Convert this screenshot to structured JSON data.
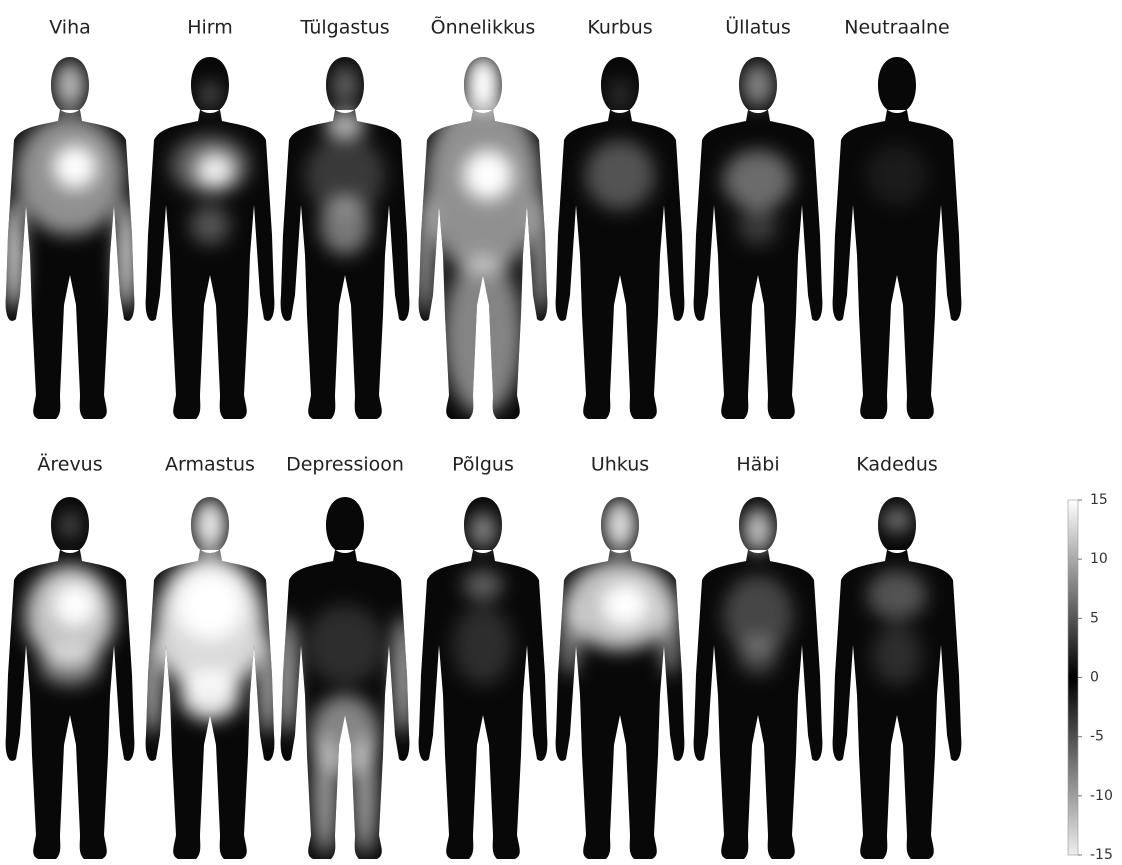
{
  "panels": [
    {
      "label": "Viha"
    },
    {
      "label": "Hirm"
    },
    {
      "label": "Tülgastus"
    },
    {
      "label": "Õnnelikkus"
    },
    {
      "label": "Kurbus"
    },
    {
      "label": "Üllatus"
    },
    {
      "label": "Neutraalne"
    },
    {
      "label": "Ärevus"
    },
    {
      "label": "Armastus"
    },
    {
      "label": "Depressioon"
    },
    {
      "label": "Põlgus"
    },
    {
      "label": "Uhkus"
    },
    {
      "label": "Häbi"
    },
    {
      "label": "Kadedus"
    }
  ],
  "colorbar": {
    "ticks": [
      15,
      10,
      5,
      0,
      -5,
      -10,
      -15
    ]
  }
}
